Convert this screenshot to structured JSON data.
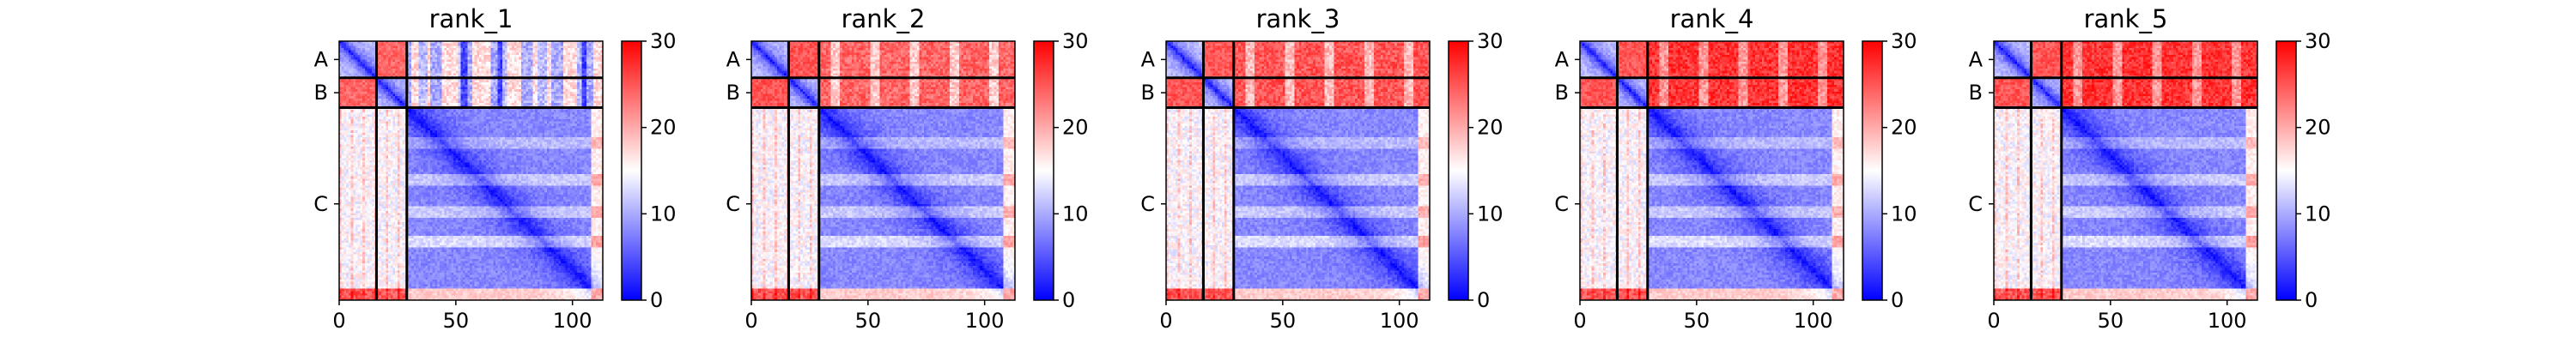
{
  "chart_data": [
    {
      "type": "heatmap",
      "title": "rank_1",
      "n_residues": 113,
      "chain_boundaries": [
        16,
        29
      ],
      "chain_labels": [
        "A",
        "B",
        "C"
      ],
      "x_ticks": [
        0,
        50,
        100
      ],
      "x_tick_labels": [
        "0",
        "50",
        "100"
      ],
      "colorbar": {
        "range": [
          0,
          30
        ],
        "ticks": [
          0,
          10,
          20,
          30
        ],
        "tick_labels": [
          "0",
          "10",
          "20",
          "30"
        ],
        "colormap": "bwr"
      },
      "inter_chain_level": {
        "AB_block": 24,
        "AB_to_C_block": 17
      }
    },
    {
      "type": "heatmap",
      "title": "rank_2",
      "n_residues": 113,
      "chain_boundaries": [
        16,
        29
      ],
      "chain_labels": [
        "A",
        "B",
        "C"
      ],
      "x_ticks": [
        0,
        50,
        100
      ],
      "x_tick_labels": [
        "0",
        "50",
        "100"
      ],
      "colorbar": {
        "range": [
          0,
          30
        ],
        "ticks": [
          0,
          10,
          20,
          30
        ],
        "tick_labels": [
          "0",
          "10",
          "20",
          "30"
        ],
        "colormap": "bwr"
      },
      "inter_chain_level": {
        "AB_block": 25,
        "AB_to_C_block": 24
      }
    },
    {
      "type": "heatmap",
      "title": "rank_3",
      "n_residues": 113,
      "chain_boundaries": [
        16,
        29
      ],
      "chain_labels": [
        "A",
        "B",
        "C"
      ],
      "x_ticks": [
        0,
        50,
        100
      ],
      "x_tick_labels": [
        "0",
        "50",
        "100"
      ],
      "colorbar": {
        "range": [
          0,
          30
        ],
        "ticks": [
          0,
          10,
          20,
          30
        ],
        "tick_labels": [
          "0",
          "10",
          "20",
          "30"
        ],
        "colormap": "bwr"
      },
      "inter_chain_level": {
        "AB_block": 25,
        "AB_to_C_block": 25
      }
    },
    {
      "type": "heatmap",
      "title": "rank_4",
      "n_residues": 113,
      "chain_boundaries": [
        16,
        29
      ],
      "chain_labels": [
        "A",
        "B",
        "C"
      ],
      "x_ticks": [
        0,
        50,
        100
      ],
      "x_tick_labels": [
        "0",
        "50",
        "100"
      ],
      "colorbar": {
        "range": [
          0,
          30
        ],
        "ticks": [
          0,
          10,
          20,
          30
        ],
        "tick_labels": [
          "0",
          "10",
          "20",
          "30"
        ],
        "colormap": "bwr"
      },
      "inter_chain_level": {
        "AB_block": 25,
        "AB_to_C_block": 27
      }
    },
    {
      "type": "heatmap",
      "title": "rank_5",
      "n_residues": 113,
      "chain_boundaries": [
        16,
        29
      ],
      "chain_labels": [
        "A",
        "B",
        "C"
      ],
      "x_ticks": [
        0,
        50,
        100
      ],
      "x_tick_labels": [
        "0",
        "50",
        "100"
      ],
      "colorbar": {
        "range": [
          0,
          30
        ],
        "ticks": [
          0,
          10,
          20,
          30
        ],
        "tick_labels": [
          "0",
          "10",
          "20",
          "30"
        ],
        "colormap": "bwr"
      },
      "inter_chain_level": {
        "AB_block": 25,
        "AB_to_C_block": 27
      }
    }
  ]
}
